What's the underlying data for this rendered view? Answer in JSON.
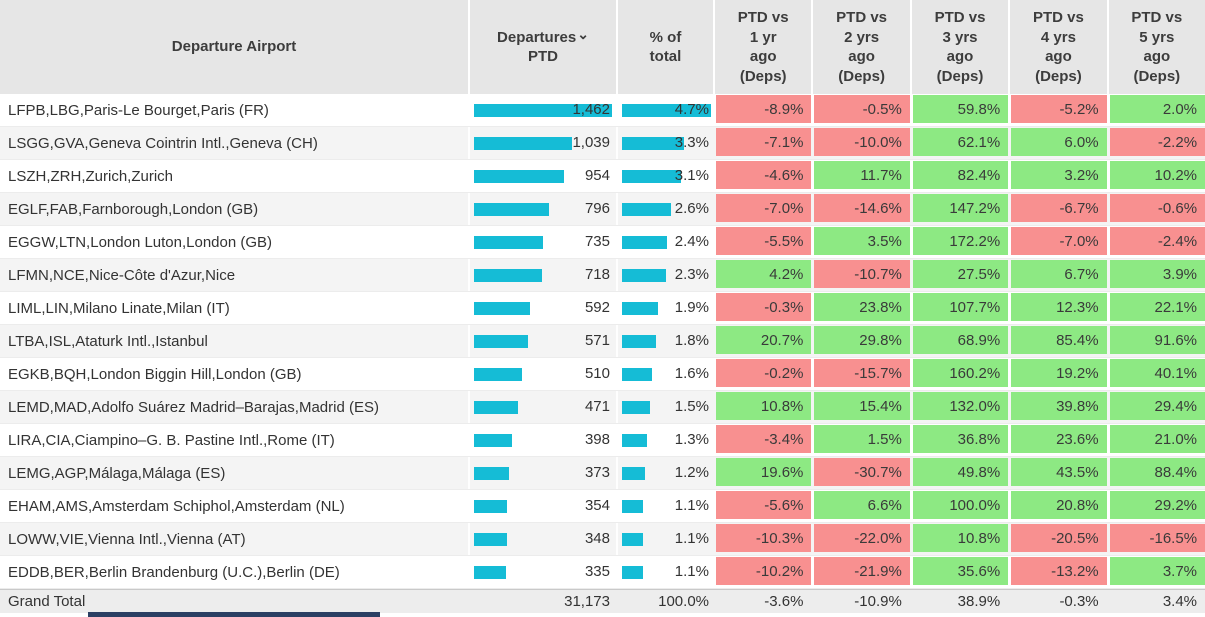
{
  "colors": {
    "bar": "#15BCD6",
    "positive_bg": "#8DE983",
    "negative_bg": "#F89090",
    "header_bg": "#E6E6E6",
    "alt_row_bg": "#F4F4F4",
    "grand_total_bg": "#EDEDED",
    "bottom_bar": "#2B3F63"
  },
  "icons": {
    "sort_desc": "⌄"
  },
  "table": {
    "columns": [
      {
        "id": "departure-airport",
        "label": "Departure Airport"
      },
      {
        "id": "departures-ptd",
        "label": "Departures",
        "label2": "PTD",
        "sort": true
      },
      {
        "id": "pct-of-total",
        "label": "% of",
        "label2": "total"
      },
      {
        "id": "ptd-vs-1yr",
        "label": "PTD vs",
        "label2": "1 yr\nago\n(Deps)"
      },
      {
        "id": "ptd-vs-2yrs",
        "label": "PTD vs",
        "label2": "2 yrs\nago\n(Deps)"
      },
      {
        "id": "ptd-vs-3yrs",
        "label": "PTD vs",
        "label2": "3 yrs\nago\n(Deps)"
      },
      {
        "id": "ptd-vs-4yrs",
        "label": "PTD vs",
        "label2": "4 yrs\nago\n(Deps)"
      },
      {
        "id": "ptd-vs-5yrs",
        "label": "PTD vs",
        "label2": "5 yrs\nago\n(Deps)"
      }
    ],
    "rows": [
      {
        "airport": "LFPB,LBG,Paris-Le Bourget,Paris (FR)",
        "departures": "1,462",
        "pct_of_total": "4.7%",
        "changes": [
          "-8.9%",
          "-0.5%",
          "59.8%",
          "-5.2%",
          "2.0%"
        ]
      },
      {
        "airport": "LSGG,GVA,Geneva Cointrin Intl.,Geneva (CH)",
        "departures": "1,039",
        "pct_of_total": "3.3%",
        "changes": [
          "-7.1%",
          "-10.0%",
          "62.1%",
          "6.0%",
          "-2.2%"
        ]
      },
      {
        "airport": "LSZH,ZRH,Zurich,Zurich",
        "departures": "954",
        "pct_of_total": "3.1%",
        "changes": [
          "-4.6%",
          "11.7%",
          "82.4%",
          "3.2%",
          "10.2%"
        ]
      },
      {
        "airport": "EGLF,FAB,Farnborough,London (GB)",
        "departures": "796",
        "pct_of_total": "2.6%",
        "changes": [
          "-7.0%",
          "-14.6%",
          "147.2%",
          "-6.7%",
          "-0.6%"
        ]
      },
      {
        "airport": "EGGW,LTN,London Luton,London (GB)",
        "departures": "735",
        "pct_of_total": "2.4%",
        "changes": [
          "-5.5%",
          "3.5%",
          "172.2%",
          "-7.0%",
          "-2.4%"
        ]
      },
      {
        "airport": "LFMN,NCE,Nice-Côte d'Azur,Nice",
        "departures": "718",
        "pct_of_total": "2.3%",
        "changes": [
          "4.2%",
          "-10.7%",
          "27.5%",
          "6.7%",
          "3.9%"
        ]
      },
      {
        "airport": "LIML,LIN,Milano Linate,Milan (IT)",
        "departures": "592",
        "pct_of_total": "1.9%",
        "changes": [
          "-0.3%",
          "23.8%",
          "107.7%",
          "12.3%",
          "22.1%"
        ]
      },
      {
        "airport": "LTBA,ISL,Ataturk Intl.,Istanbul",
        "departures": "571",
        "pct_of_total": "1.8%",
        "changes": [
          "20.7%",
          "29.8%",
          "68.9%",
          "85.4%",
          "91.6%"
        ]
      },
      {
        "airport": "EGKB,BQH,London Biggin Hill,London (GB)",
        "departures": "510",
        "pct_of_total": "1.6%",
        "changes": [
          "-0.2%",
          "-15.7%",
          "160.2%",
          "19.2%",
          "40.1%"
        ]
      },
      {
        "airport": "LEMD,MAD,Adolfo Suárez Madrid–Barajas,Madrid (ES)",
        "departures": "471",
        "pct_of_total": "1.5%",
        "changes": [
          "10.8%",
          "15.4%",
          "132.0%",
          "39.8%",
          "29.4%"
        ]
      },
      {
        "airport": "LIRA,CIA,Ciampino–G. B. Pastine Intl.,Rome (IT)",
        "departures": "398",
        "pct_of_total": "1.3%",
        "changes": [
          "-3.4%",
          "1.5%",
          "36.8%",
          "23.6%",
          "21.0%"
        ]
      },
      {
        "airport": "LEMG,AGP,Málaga,Málaga (ES)",
        "departures": "373",
        "pct_of_total": "1.2%",
        "changes": [
          "19.6%",
          "-30.7%",
          "49.8%",
          "43.5%",
          "88.4%"
        ]
      },
      {
        "airport": "EHAM,AMS,Amsterdam Schiphol,Amsterdam (NL)",
        "departures": "354",
        "pct_of_total": "1.1%",
        "changes": [
          "-5.6%",
          "6.6%",
          "100.0%",
          "20.8%",
          "29.2%"
        ]
      },
      {
        "airport": "LOWW,VIE,Vienna Intl.,Vienna (AT)",
        "departures": "348",
        "pct_of_total": "1.1%",
        "changes": [
          "-10.3%",
          "-22.0%",
          "10.8%",
          "-20.5%",
          "-16.5%"
        ]
      },
      {
        "airport": "EDDB,BER,Berlin Brandenburg (U.C.),Berlin (DE)",
        "departures": "335",
        "pct_of_total": "1.1%",
        "changes": [
          "-10.2%",
          "-21.9%",
          "35.6%",
          "-13.2%",
          "3.7%"
        ]
      }
    ],
    "grand_total": {
      "label": "Grand Total",
      "departures": "31,173",
      "pct_of_total": "100.0%",
      "changes": [
        "-3.6%",
        "-10.9%",
        "38.9%",
        "-0.3%",
        "3.4%"
      ]
    }
  }
}
